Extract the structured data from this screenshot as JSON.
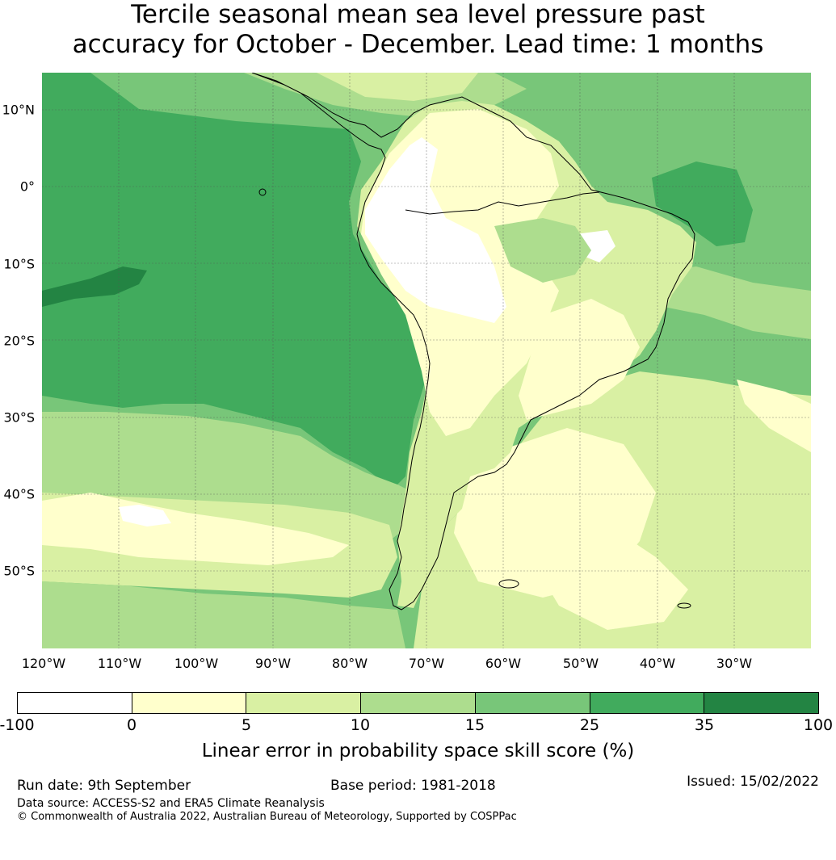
{
  "title": {
    "line1": "Tercile seasonal mean sea level pressure past",
    "line2": "accuracy for October - December. Lead time: 1 months"
  },
  "map": {
    "lon_ticks": [
      "120°W",
      "110°W",
      "100°W",
      "90°W",
      "80°W",
      "70°W",
      "60°W",
      "50°W",
      "40°W",
      "30°W"
    ],
    "lat_ticks": [
      "10°N",
      "0°",
      "10°S",
      "20°S",
      "30°S",
      "40°S",
      "50°S"
    ],
    "lon_range": [
      -123,
      -23
    ],
    "lat_range": [
      15,
      -60
    ],
    "land_outline_color": "#000000",
    "gridlines": true
  },
  "colorbar": {
    "ticks": [
      "-100",
      "0",
      "5",
      "10",
      "15",
      "25",
      "35",
      "100"
    ],
    "colors": [
      "#ffffff",
      "#ffffcc",
      "#d9f0a3",
      "#addd8e",
      "#78c679",
      "#41ab5d",
      "#238443"
    ],
    "label": "Linear error in probability space skill score (%)"
  },
  "footer": {
    "run_date": "Run date: 9th September",
    "base_period": "Base period: 1981-2018",
    "issued": "Issued: 15/02/2022",
    "data_source": "Data source: ACCESS-S2 and ERA5 Climate Reanalysis",
    "copyright": "© Commonwealth of Australia 2022, Australian Bureau of Meteorology, Supported by COSPPac"
  }
}
